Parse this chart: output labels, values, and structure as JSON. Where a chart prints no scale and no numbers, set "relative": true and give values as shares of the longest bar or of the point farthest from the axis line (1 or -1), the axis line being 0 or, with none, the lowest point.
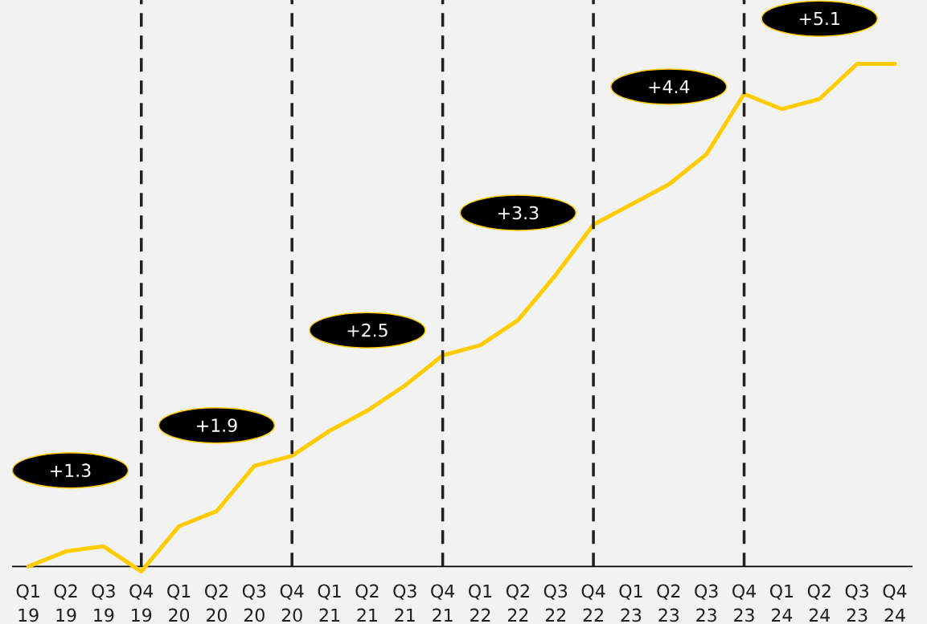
{
  "chart_data": {
    "type": "line",
    "relative": true,
    "color": "#ffcc00",
    "categories": [
      "Q1 19",
      "Q2 19",
      "Q3 19",
      "Q4 19",
      "Q1 20",
      "Q2 20",
      "Q3 20",
      "Q4 20",
      "Q1 21",
      "Q2 21",
      "Q3 21",
      "Q4 21",
      "Q1 22",
      "Q2 22",
      "Q3 22",
      "Q4 22",
      "Q1 23",
      "Q2 23",
      "Q3 23",
      "Q4 23",
      "Q1 24",
      "Q2 24",
      "Q3 23",
      "Q4 24"
    ],
    "values": [
      0,
      0.03,
      0.04,
      -0.01,
      0.08,
      0.11,
      0.2,
      0.22,
      0.27,
      0.31,
      0.36,
      0.42,
      0.44,
      0.49,
      0.58,
      0.68,
      0.72,
      0.76,
      0.82,
      0.94,
      0.91,
      0.93,
      1,
      1
    ],
    "annotations": [
      "+1.3",
      "+1.9",
      "+2.5",
      "+3.3",
      "+4.4",
      "+5.1"
    ],
    "ref_lines": [
      {
        "axis": "x",
        "value": "Q4 19",
        "color": "#231f20",
        "line_style": "dashed"
      },
      {
        "axis": "x",
        "value": "Q4 20",
        "color": "#231f20",
        "line_style": "dashed"
      },
      {
        "axis": "x",
        "value": "Q4 21",
        "color": "#231f20",
        "line_style": "dashed"
      },
      {
        "axis": "x",
        "value": "Q4 22",
        "color": "#231f20",
        "line_style": "dashed"
      },
      {
        "axis": "x",
        "value": "Q4 23",
        "color": "#231f20",
        "line_style": "dashed"
      }
    ]
  }
}
